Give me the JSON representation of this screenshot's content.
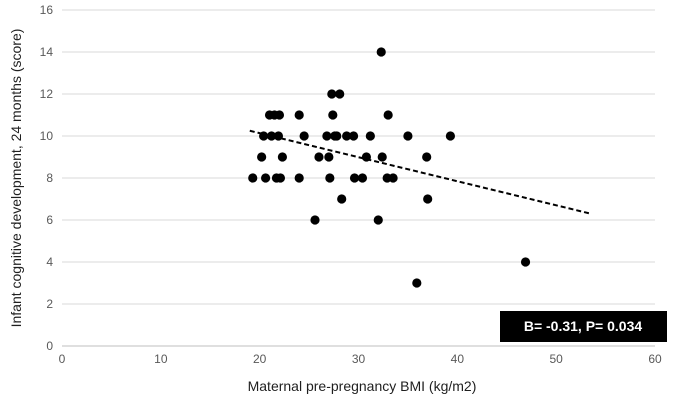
{
  "chart_data": {
    "type": "scatter",
    "title": "",
    "xlabel": "Maternal pre-pregnancy BMI (kg/m2)",
    "ylabel": "Infant cognitive development, 24 months (score)",
    "xlim": [
      0,
      60
    ],
    "ylim": [
      0,
      16
    ],
    "xticks": [
      0,
      10,
      20,
      30,
      40,
      50,
      60
    ],
    "yticks": [
      0,
      2,
      4,
      6,
      8,
      10,
      12,
      14,
      16
    ],
    "grid": "horizontal",
    "points": [
      {
        "x": 19.3,
        "y": 8
      },
      {
        "x": 20.2,
        "y": 9
      },
      {
        "x": 20.4,
        "y": 10
      },
      {
        "x": 20.6,
        "y": 8
      },
      {
        "x": 21.0,
        "y": 11
      },
      {
        "x": 21.2,
        "y": 10
      },
      {
        "x": 21.5,
        "y": 11
      },
      {
        "x": 21.7,
        "y": 8
      },
      {
        "x": 21.9,
        "y": 10
      },
      {
        "x": 22.0,
        "y": 11
      },
      {
        "x": 22.1,
        "y": 8
      },
      {
        "x": 22.3,
        "y": 9
      },
      {
        "x": 24.0,
        "y": 11
      },
      {
        "x": 24.0,
        "y": 8
      },
      {
        "x": 24.5,
        "y": 10
      },
      {
        "x": 25.6,
        "y": 6
      },
      {
        "x": 26.0,
        "y": 9
      },
      {
        "x": 26.8,
        "y": 10
      },
      {
        "x": 27.0,
        "y": 9
      },
      {
        "x": 27.1,
        "y": 8
      },
      {
        "x": 27.3,
        "y": 12
      },
      {
        "x": 27.4,
        "y": 11
      },
      {
        "x": 27.6,
        "y": 10
      },
      {
        "x": 27.8,
        "y": 10
      },
      {
        "x": 28.1,
        "y": 12
      },
      {
        "x": 28.3,
        "y": 7
      },
      {
        "x": 28.8,
        "y": 10
      },
      {
        "x": 29.5,
        "y": 10
      },
      {
        "x": 29.6,
        "y": 8
      },
      {
        "x": 30.4,
        "y": 8
      },
      {
        "x": 30.8,
        "y": 9
      },
      {
        "x": 31.2,
        "y": 10
      },
      {
        "x": 32.0,
        "y": 6
      },
      {
        "x": 32.3,
        "y": 14
      },
      {
        "x": 32.4,
        "y": 9
      },
      {
        "x": 32.9,
        "y": 8
      },
      {
        "x": 33.0,
        "y": 11
      },
      {
        "x": 33.5,
        "y": 8
      },
      {
        "x": 35.0,
        "y": 10
      },
      {
        "x": 35.9,
        "y": 3
      },
      {
        "x": 36.9,
        "y": 9
      },
      {
        "x": 37.0,
        "y": 7
      },
      {
        "x": 39.3,
        "y": 10
      },
      {
        "x": 46.9,
        "y": 4
      }
    ],
    "trendline": {
      "x": [
        19.0,
        53.5
      ],
      "y": [
        10.25,
        6.3
      ],
      "style": "dashed"
    },
    "annotation": {
      "text": "B= -0.31, P= 0.034",
      "placement": "bottom-right"
    }
  }
}
